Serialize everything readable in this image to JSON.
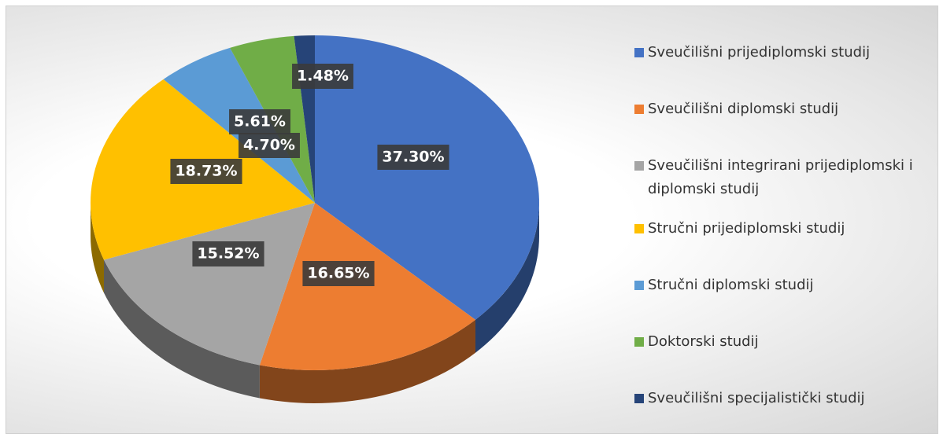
{
  "chart_data": {
    "type": "pie",
    "categories": [
      "Sveučilišni prijediplomski studij",
      "Sveučilišni diplomski studij",
      "Sveučilišni integrirani prijediplomski i diplomski studij",
      "Stručni prijediplomski studij",
      "Stručni diplomski studij",
      "Doktorski studij",
      "Sveučilišni specijalistički studij"
    ],
    "values": [
      37.3,
      16.65,
      15.52,
      18.73,
      5.61,
      4.7,
      1.48
    ],
    "value_labels": [
      "37.30%",
      "16.65%",
      "15.52%",
      "18.73%",
      "5.61%",
      "4.70%",
      "1.48%"
    ],
    "colors": [
      "#4472c4",
      "#ed7d31",
      "#a5a5a5",
      "#ffc000",
      "#5b9bd5",
      "#70ad47",
      "#264478"
    ],
    "legend": "right"
  }
}
